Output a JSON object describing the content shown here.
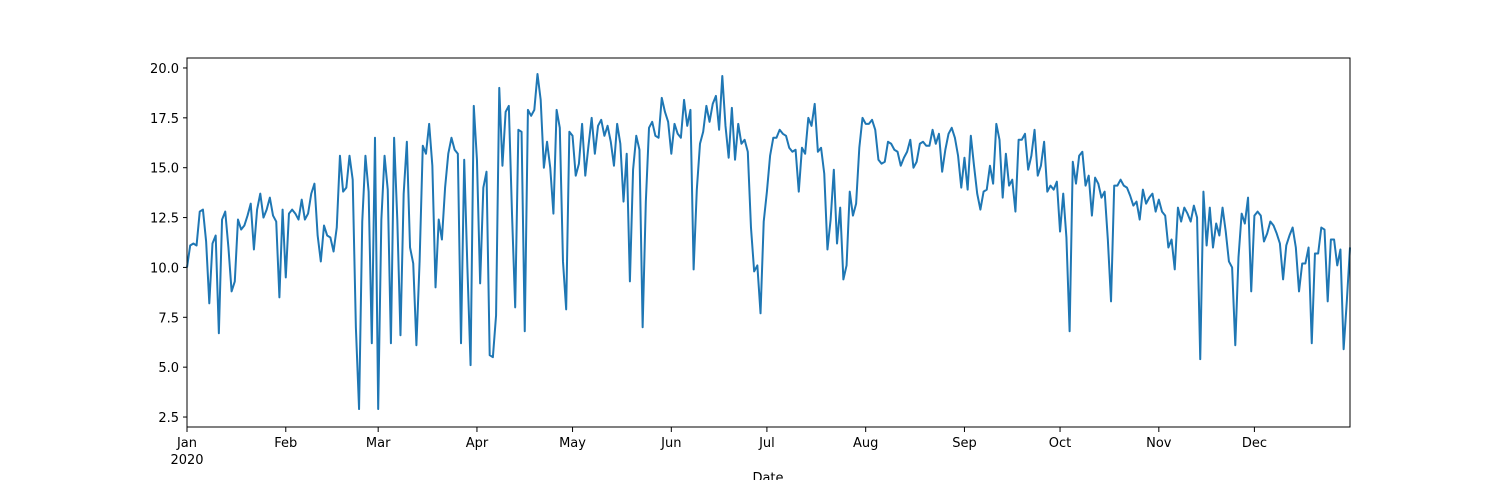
{
  "chart_data": {
    "type": "line",
    "xlabel": "Date",
    "year_label": "2020",
    "color": "#1f77b4",
    "xlim": [
      0,
      365
    ],
    "xticks": [
      {
        "value": 0,
        "label": "Jan"
      },
      {
        "value": 31,
        "label": "Feb"
      },
      {
        "value": 60,
        "label": "Mar"
      },
      {
        "value": 91,
        "label": "Apr"
      },
      {
        "value": 121,
        "label": "May"
      },
      {
        "value": 152,
        "label": "Jun"
      },
      {
        "value": 182,
        "label": "Jul"
      },
      {
        "value": 213,
        "label": "Aug"
      },
      {
        "value": 244,
        "label": "Sep"
      },
      {
        "value": 274,
        "label": "Oct"
      },
      {
        "value": 305,
        "label": "Nov"
      },
      {
        "value": 335,
        "label": "Dec"
      }
    ],
    "ylim": [
      2.0,
      20.5
    ],
    "yticks": [
      2.5,
      {
        "value": 5,
        "label": "5.0"
      },
      7.5,
      {
        "value": 10,
        "label": "10.0"
      },
      12.5,
      {
        "value": 15,
        "label": "15.0"
      },
      17.5,
      {
        "value": 20,
        "label": "20.0"
      }
    ],
    "values": [
      10.0,
      11.1,
      11.2,
      11.1,
      12.8,
      12.9,
      11.3,
      8.2,
      11.2,
      11.6,
      6.7,
      12.4,
      12.8,
      11.0,
      8.8,
      9.3,
      12.4,
      11.9,
      12.1,
      12.6,
      13.2,
      10.9,
      12.9,
      13.7,
      12.5,
      12.9,
      13.5,
      12.6,
      12.3,
      8.5,
      12.9,
      9.5,
      12.7,
      12.9,
      12.7,
      12.4,
      13.4,
      12.4,
      12.7,
      13.7,
      14.2,
      11.6,
      10.3,
      12.1,
      11.6,
      11.5,
      10.8,
      12.0,
      15.6,
      13.8,
      14.0,
      15.6,
      14.4,
      7.0,
      2.9,
      12.3,
      15.6,
      13.8,
      6.2,
      16.5,
      2.9,
      12.4,
      15.6,
      13.9,
      6.2,
      16.5,
      12.4,
      6.6,
      13.7,
      16.3,
      11.0,
      10.2,
      6.1,
      10.3,
      16.1,
      15.7,
      17.2,
      15.1,
      9.0,
      12.4,
      11.4,
      14.0,
      15.7,
      16.5,
      15.9,
      15.7,
      6.2,
      15.4,
      10.0,
      5.1,
      18.1,
      15.4,
      9.2,
      14.0,
      14.8,
      5.6,
      5.5,
      7.6,
      19.0,
      15.1,
      17.8,
      18.1,
      12.7,
      8.0,
      16.9,
      16.8,
      6.8,
      17.9,
      17.6,
      17.9,
      19.7,
      18.4,
      15.0,
      16.3,
      15.0,
      12.7,
      17.9,
      17.0,
      10.3,
      7.9,
      16.8,
      16.6,
      14.6,
      15.2,
      17.2,
      14.6,
      16.1,
      17.5,
      15.7,
      17.1,
      17.4,
      16.6,
      17.1,
      16.3,
      15.1,
      17.2,
      16.2,
      13.3,
      15.7,
      9.3,
      14.9,
      16.6,
      15.9,
      7.0,
      13.3,
      17.0,
      17.3,
      16.6,
      16.5,
      18.5,
      17.8,
      17.3,
      15.7,
      17.2,
      16.7,
      16.5,
      18.4,
      17.1,
      17.9,
      9.9,
      13.9,
      16.2,
      16.8,
      18.1,
      17.3,
      18.2,
      18.6,
      16.9,
      19.6,
      17.1,
      15.5,
      18.0,
      15.4,
      17.2,
      16.2,
      16.4,
      15.8,
      12.0,
      9.8,
      10.1,
      7.7,
      12.3,
      13.8,
      15.6,
      16.5,
      16.5,
      16.9,
      16.7,
      16.6,
      16.0,
      15.8,
      15.9,
      13.8,
      16.0,
      15.7,
      17.5,
      17.1,
      18.2,
      15.8,
      16.0,
      14.7,
      10.9,
      12.4,
      14.9,
      11.2,
      13.0,
      9.4,
      10.1,
      13.8,
      12.6,
      13.2,
      16.0,
      17.5,
      17.2,
      17.2,
      17.4,
      16.9,
      15.4,
      15.2,
      15.3,
      16.3,
      16.2,
      15.9,
      15.8,
      15.1,
      15.5,
      15.8,
      16.4,
      15.0,
      15.3,
      16.2,
      16.3,
      16.1,
      16.1,
      16.9,
      16.2,
      16.7,
      14.8,
      15.9,
      16.7,
      17.0,
      16.5,
      15.6,
      14.0,
      15.5,
      13.9,
      16.6,
      15.1,
      13.7,
      12.9,
      13.8,
      13.9,
      15.1,
      14.2,
      17.2,
      16.4,
      13.5,
      15.7,
      14.1,
      14.4,
      12.8,
      16.4,
      16.4,
      16.7,
      14.9,
      15.6,
      16.9,
      14.6,
      15.1,
      16.3,
      13.8,
      14.1,
      13.9,
      14.3,
      11.8,
      13.7,
      11.5,
      6.8,
      15.3,
      14.2,
      15.6,
      15.8,
      14.1,
      14.6,
      12.6,
      14.5,
      14.2,
      13.5,
      13.8,
      11.4,
      8.3,
      14.1,
      14.1,
      14.4,
      14.1,
      14.0,
      13.6,
      13.1,
      13.3,
      12.4,
      13.9,
      13.2,
      13.5,
      13.7,
      12.8,
      13.4,
      12.8,
      12.6,
      11.0,
      11.4,
      9.9,
      13.0,
      12.3,
      13.0,
      12.7,
      12.3,
      13.1,
      12.5,
      5.4,
      13.8,
      11.1,
      13.0,
      11.0,
      12.2,
      11.6,
      13.0,
      11.8,
      10.3,
      10.0,
      6.1,
      10.5,
      12.7,
      12.2,
      13.5,
      8.8,
      12.6,
      12.8,
      12.6,
      11.3,
      11.7,
      12.3,
      12.1,
      11.7,
      11.2,
      9.4,
      11.1,
      11.6,
      12.0,
      11.0,
      8.8,
      10.2,
      10.2,
      11.0,
      6.2,
      10.7,
      10.7,
      12.0,
      11.9,
      8.3,
      11.4,
      11.4,
      10.1,
      10.9,
      5.9,
      8.3,
      11.0
    ]
  }
}
